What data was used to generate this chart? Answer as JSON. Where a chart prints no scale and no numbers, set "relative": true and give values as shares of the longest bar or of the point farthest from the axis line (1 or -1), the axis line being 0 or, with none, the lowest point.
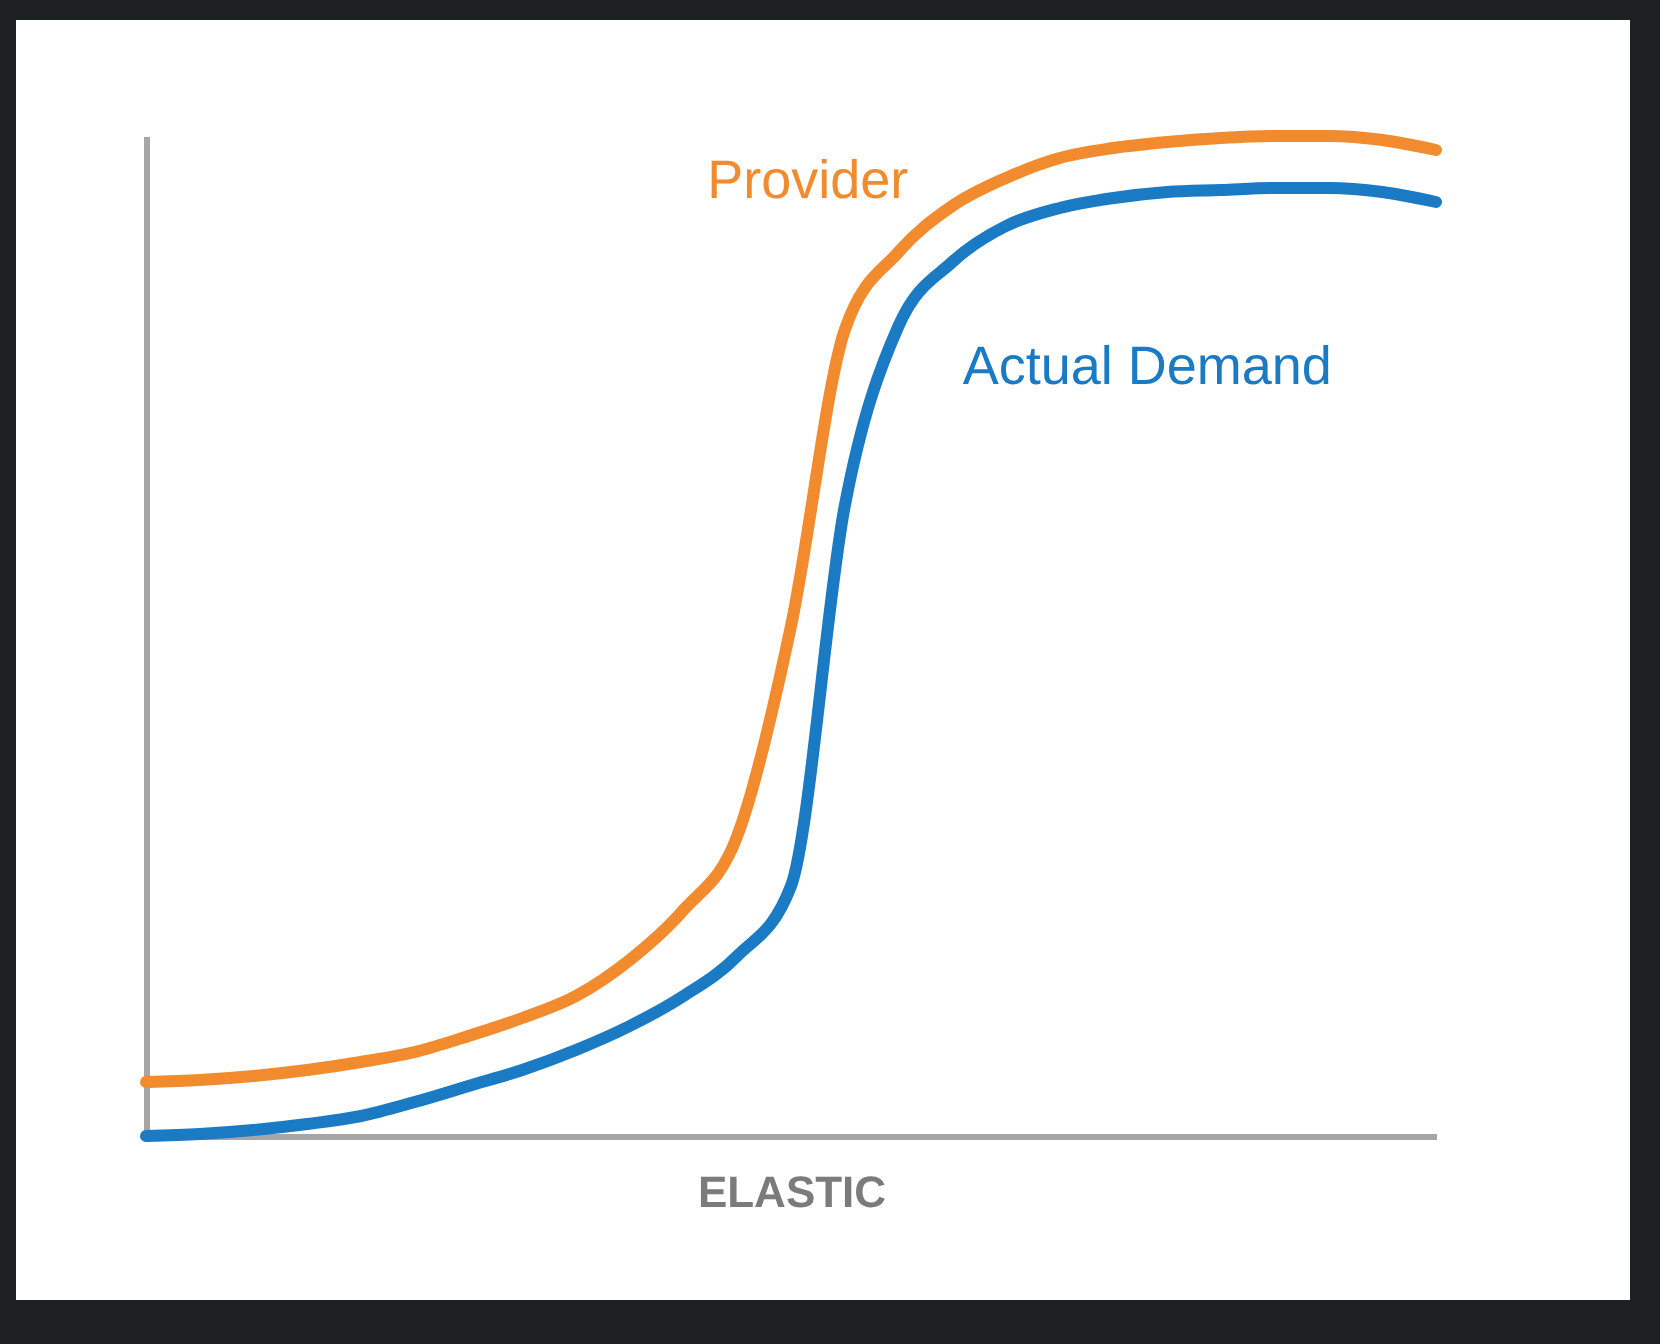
{
  "chart_data": {
    "type": "line",
    "xlabel": "ELASTIC",
    "relative": true,
    "legend": false,
    "grid": false,
    "marker": "none",
    "line_style": "solid",
    "categories": [
      null,
      null,
      null,
      null,
      null,
      null,
      null,
      null,
      null,
      null,
      null,
      null,
      null,
      null,
      null,
      null,
      null,
      null,
      null,
      null,
      null,
      null,
      null,
      null,
      null
    ],
    "series": [
      {
        "name": "Provider",
        "color": "#f28a2e",
        "values": [
          0.054,
          0.056,
          0.06,
          0.066,
          0.074,
          0.084,
          0.1,
          0.118,
          0.14,
          0.176,
          0.226,
          0.3,
          0.51,
          0.806,
          0.884,
          0.93,
          0.958,
          0.978,
          0.988,
          0.994,
          0.998,
          1,
          1,
          0.996,
          0.986
        ]
      },
      {
        "name": "Actual Demand",
        "color": "#1a7ac4",
        "values": [
          0,
          0.002,
          0.006,
          0.012,
          0.02,
          0.034,
          0.05,
          0.066,
          0.086,
          0.11,
          0.14,
          0.18,
          0.25,
          0.63,
          0.81,
          0.874,
          0.91,
          0.928,
          0.938,
          0.944,
          0.946,
          0.948,
          0.948,
          0.944,
          0.934
        ]
      }
    ]
  }
}
